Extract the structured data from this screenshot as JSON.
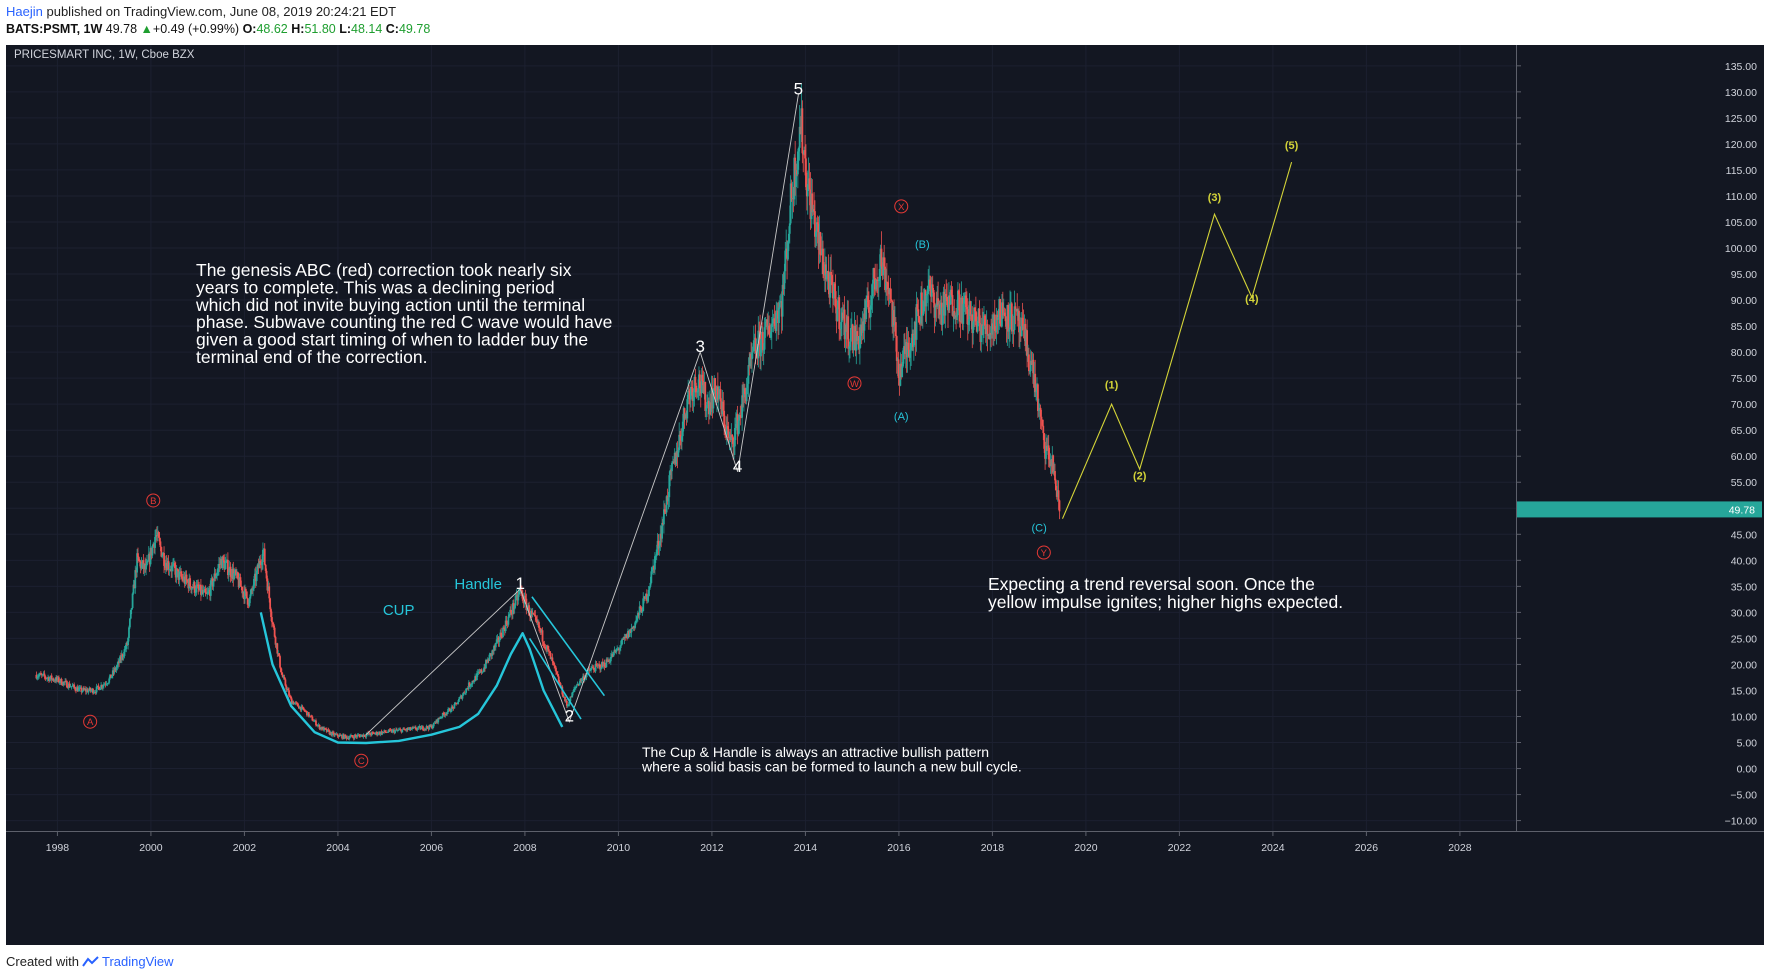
{
  "header": {
    "author": "Haejin",
    "published_text": "published on TradingView.com, June 08, 2019 20:24:21 EDT",
    "symbol": "BATS:PSMT, 1W",
    "last": "49.78",
    "change": "+0.49 (+0.99%)",
    "open_label": "O:",
    "open": "48.62",
    "high_label": "H:",
    "high": "51.80",
    "low_label": "L:",
    "low": "48.14",
    "close_label": "C:",
    "close": "49.78"
  },
  "footer": {
    "created_with": "Created with",
    "brand": "TradingView"
  },
  "colors": {
    "background": "#131722",
    "candle_up": "#26a69a",
    "candle_down": "#ef5350",
    "cyan": "#26c6da",
    "yellow": "#d4d438",
    "red_label": "#e53935",
    "white": "#ffffff",
    "price_tag": "#26a69a"
  },
  "chart_data": {
    "type": "candlestick",
    "title": "PRICESMART INC, 1W, Cboe BZX",
    "x_range": [
      1996.9,
      2029.2
    ],
    "y_range": [
      -12,
      139
    ],
    "x_tick_labels": [
      "1998",
      "2000",
      "2002",
      "2004",
      "2006",
      "2008",
      "2010",
      "2012",
      "2014",
      "2016",
      "2018",
      "2020",
      "2022",
      "2024",
      "2026",
      "2028"
    ],
    "y_tick_labels": [
      "135.00",
      "130.00",
      "125.00",
      "120.00",
      "115.00",
      "110.00",
      "105.00",
      "100.00",
      "95.00",
      "90.00",
      "85.00",
      "80.00",
      "75.00",
      "70.00",
      "65.00",
      "60.00",
      "55.00",
      "50.00",
      "45.00",
      "40.00",
      "35.00",
      "30.00",
      "25.00",
      "20.00",
      "15.00",
      "10.00",
      "5.00",
      "0.00",
      "−5.00",
      "−10.00"
    ],
    "last_price_label": "49.78",
    "last_price": 49.78,
    "price_path": [
      [
        1997.55,
        18
      ],
      [
        1998.0,
        17
      ],
      [
        1998.5,
        15
      ],
      [
        1998.8,
        15
      ],
      [
        1999.1,
        17
      ],
      [
        1999.3,
        20
      ],
      [
        1999.5,
        24
      ],
      [
        1999.7,
        40
      ],
      [
        1999.9,
        38
      ],
      [
        2000.1,
        45
      ],
      [
        2000.3,
        40
      ],
      [
        2000.6,
        37
      ],
      [
        2000.9,
        35
      ],
      [
        2001.2,
        33
      ],
      [
        2001.5,
        40
      ],
      [
        2001.8,
        37
      ],
      [
        2002.1,
        32
      ],
      [
        2002.4,
        42
      ],
      [
        2002.6,
        28
      ],
      [
        2002.8,
        18
      ],
      [
        2003.0,
        13
      ],
      [
        2003.3,
        11
      ],
      [
        2003.6,
        8
      ],
      [
        2003.9,
        6.5
      ],
      [
        2004.2,
        6
      ],
      [
        2004.6,
        6.5
      ],
      [
        2005.0,
        7
      ],
      [
        2005.5,
        7.5
      ],
      [
        2006.0,
        8
      ],
      [
        2006.2,
        10
      ],
      [
        2006.5,
        12
      ],
      [
        2006.8,
        16
      ],
      [
        2007.1,
        19
      ],
      [
        2007.4,
        24
      ],
      [
        2007.7,
        30
      ],
      [
        2007.9,
        34
      ],
      [
        2008.1,
        30
      ],
      [
        2008.3,
        27
      ],
      [
        2008.6,
        20
      ],
      [
        2008.9,
        12
      ],
      [
        2009.1,
        16
      ],
      [
        2009.4,
        19
      ],
      [
        2009.7,
        20
      ],
      [
        2010.0,
        23
      ],
      [
        2010.3,
        27
      ],
      [
        2010.6,
        33
      ],
      [
        2010.9,
        45
      ],
      [
        2011.1,
        55
      ],
      [
        2011.3,
        63
      ],
      [
        2011.5,
        72
      ],
      [
        2011.7,
        75
      ],
      [
        2011.9,
        70
      ],
      [
        2012.1,
        73
      ],
      [
        2012.4,
        62
      ],
      [
        2012.6,
        68
      ],
      [
        2012.9,
        80
      ],
      [
        2013.2,
        84
      ],
      [
        2013.5,
        90
      ],
      [
        2013.7,
        110
      ],
      [
        2013.9,
        124
      ],
      [
        2014.05,
        112
      ],
      [
        2014.3,
        100
      ],
      [
        2014.6,
        90
      ],
      [
        2014.9,
        84
      ],
      [
        2015.1,
        82
      ],
      [
        2015.3,
        87
      ],
      [
        2015.6,
        98
      ],
      [
        2015.8,
        92
      ],
      [
        2016.0,
        76
      ],
      [
        2016.3,
        84
      ],
      [
        2016.6,
        92
      ],
      [
        2016.9,
        88
      ],
      [
        2017.2,
        90
      ],
      [
        2017.6,
        86
      ],
      [
        2017.9,
        84
      ],
      [
        2018.2,
        88
      ],
      [
        2018.5,
        86
      ],
      [
        2018.7,
        82
      ],
      [
        2018.9,
        75
      ],
      [
        2019.1,
        62
      ],
      [
        2019.3,
        58
      ],
      [
        2019.44,
        49
      ]
    ]
  },
  "annotations": {
    "ticker_label": "PRICESMART INC, 1W, Cboe BZX",
    "genesis_text": [
      "The genesis ABC (red) correction took nearly six",
      "years to complete. This was a  declining period",
      "which did not invite buying action until the terminal",
      "phase. Subwave counting the red C wave would have",
      "given a good start timing of when to ladder buy the",
      "terminal end of the correction."
    ],
    "reversal_text": [
      "Expecting a trend reversal soon. Once the",
      "yellow impulse ignites; higher highs expected."
    ],
    "cup_handle_text": [
      "The Cup & Handle is always an attractive bullish pattern",
      "where a solid basis can be formed to launch a new bull cycle."
    ],
    "cup_label": "CUP",
    "handle_label": "Handle",
    "white_waves": [
      {
        "label": "1",
        "x": 2007.9,
        "y": 34.5
      },
      {
        "label": "2",
        "x": 2008.95,
        "y": 9
      },
      {
        "label": "3",
        "x": 2011.75,
        "y": 80
      },
      {
        "label": "4",
        "x": 2012.55,
        "y": 57
      },
      {
        "label": "5",
        "x": 2013.85,
        "y": 129.5
      }
    ],
    "red_waves": [
      {
        "label": "A",
        "x": 1998.7,
        "y": 9
      },
      {
        "label": "B",
        "x": 2000.05,
        "y": 51.5
      },
      {
        "label": "C",
        "x": 2004.5,
        "y": 1.5
      },
      {
        "label": "W",
        "x": 2015.05,
        "y": 74
      },
      {
        "label": "X",
        "x": 2016.05,
        "y": 108
      },
      {
        "label": "Y",
        "x": 2019.1,
        "y": 41.5
      }
    ],
    "cyan_waves": [
      {
        "label": "(A)",
        "x": 2016.05,
        "y": 67
      },
      {
        "label": "(B)",
        "x": 2016.5,
        "y": 100
      },
      {
        "label": "(C)",
        "x": 2019.0,
        "y": 45.5
      }
    ],
    "yellow_waves": [
      {
        "label": "(1)",
        "x": 2020.55,
        "y": 73
      },
      {
        "label": "(2)",
        "x": 2021.15,
        "y": 55.5
      },
      {
        "label": "(3)",
        "x": 2022.75,
        "y": 109
      },
      {
        "label": "(4)",
        "x": 2023.55,
        "y": 89.5
      },
      {
        "label": "(5)",
        "x": 2024.4,
        "y": 119
      }
    ],
    "white_path": [
      [
        2004.6,
        6.5
      ],
      [
        2007.9,
        34.5
      ],
      [
        2008.95,
        9
      ],
      [
        2011.75,
        80
      ],
      [
        2012.55,
        57
      ],
      [
        2013.85,
        129.5
      ]
    ],
    "yellow_path": [
      [
        2019.5,
        48
      ],
      [
        2020.55,
        70
      ],
      [
        2021.15,
        57.5
      ],
      [
        2022.75,
        106.5
      ],
      [
        2023.55,
        90.5
      ],
      [
        2024.4,
        116.5
      ]
    ],
    "cup_path": [
      [
        2002.35,
        30
      ],
      [
        2002.6,
        20
      ],
      [
        2003.0,
        12
      ],
      [
        2003.5,
        7
      ],
      [
        2004.0,
        5
      ],
      [
        2004.6,
        4.9
      ],
      [
        2005.3,
        5.3
      ],
      [
        2006.0,
        6.5
      ],
      [
        2006.6,
        8
      ],
      [
        2007.0,
        10.5
      ],
      [
        2007.4,
        16
      ],
      [
        2007.7,
        22
      ],
      [
        2007.95,
        26
      ],
      [
        2008.1,
        23
      ],
      [
        2008.4,
        15
      ],
      [
        2008.8,
        8
      ]
    ],
    "handle_lines": [
      [
        [
          2008.15,
          33
        ],
        [
          2009.7,
          14
        ]
      ],
      [
        [
          2008.1,
          25
        ],
        [
          2009.2,
          9.5
        ]
      ]
    ]
  }
}
